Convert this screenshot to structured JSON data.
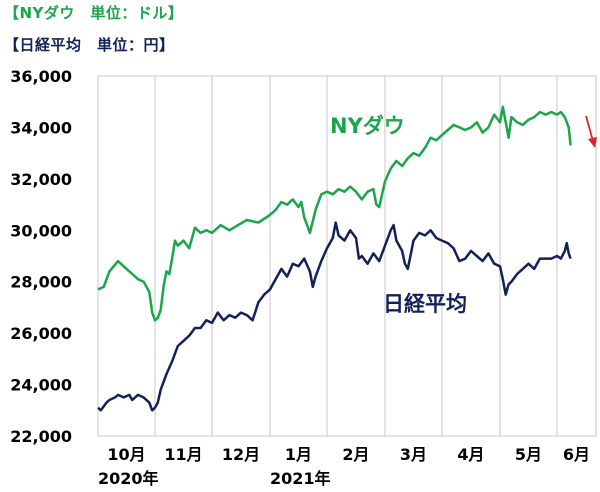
{
  "headers": {
    "nydow": "【NYダウ　単位：ドル】",
    "nikkei": "【日経平均　単位：円】"
  },
  "colors": {
    "nydow": "#1aa64a",
    "nikkei": "#13215b",
    "arrow": "#d9262b",
    "grid": "#c8c8c8"
  },
  "chart_data": {
    "type": "line",
    "title": "",
    "xlabel": "",
    "ylabel": "",
    "ylim": [
      22000,
      36000
    ],
    "yticks": [
      "22,000",
      "24,000",
      "26,000",
      "28,000",
      "30,000",
      "32,000",
      "34,000",
      "36,000"
    ],
    "xticks": [
      "10月",
      "11月",
      "12月",
      "1月",
      "2月",
      "3月",
      "4月",
      "5月",
      "6月"
    ],
    "year_labels": [
      "2020年",
      "2021年"
    ],
    "grid": "vertical",
    "series": [
      {
        "name": "NYダウ",
        "color": "#1aa64a",
        "points": [
          [
            0.0,
            27700
          ],
          [
            0.1,
            27800
          ],
          [
            0.2,
            28400
          ],
          [
            0.35,
            28800
          ],
          [
            0.5,
            28500
          ],
          [
            0.6,
            28300
          ],
          [
            0.7,
            28100
          ],
          [
            0.8,
            28000
          ],
          [
            0.9,
            27600
          ],
          [
            0.95,
            26800
          ],
          [
            1.0,
            26500
          ],
          [
            1.05,
            26600
          ],
          [
            1.1,
            26900
          ],
          [
            1.15,
            27800
          ],
          [
            1.2,
            28400
          ],
          [
            1.25,
            28300
          ],
          [
            1.3,
            28900
          ],
          [
            1.35,
            29600
          ],
          [
            1.4,
            29400
          ],
          [
            1.5,
            29600
          ],
          [
            1.6,
            29300
          ],
          [
            1.7,
            30100
          ],
          [
            1.8,
            29900
          ],
          [
            1.9,
            30000
          ],
          [
            2.0,
            29900
          ],
          [
            2.15,
            30200
          ],
          [
            2.3,
            30000
          ],
          [
            2.45,
            30200
          ],
          [
            2.6,
            30400
          ],
          [
            2.8,
            30300
          ],
          [
            3.0,
            30600
          ],
          [
            3.1,
            30800
          ],
          [
            3.2,
            31100
          ],
          [
            3.3,
            31000
          ],
          [
            3.4,
            31200
          ],
          [
            3.5,
            30900
          ],
          [
            3.55,
            31100
          ],
          [
            3.6,
            30500
          ],
          [
            3.65,
            30200
          ],
          [
            3.7,
            29900
          ],
          [
            3.8,
            30800
          ],
          [
            3.9,
            31400
          ],
          [
            4.0,
            31500
          ],
          [
            4.1,
            31400
          ],
          [
            4.2,
            31600
          ],
          [
            4.3,
            31500
          ],
          [
            4.4,
            31700
          ],
          [
            4.5,
            31500
          ],
          [
            4.6,
            31200
          ],
          [
            4.7,
            31500
          ],
          [
            4.8,
            31600
          ],
          [
            4.85,
            31000
          ],
          [
            4.9,
            30900
          ],
          [
            5.0,
            31900
          ],
          [
            5.1,
            32400
          ],
          [
            5.2,
            32700
          ],
          [
            5.3,
            32500
          ],
          [
            5.4,
            32800
          ],
          [
            5.5,
            33000
          ],
          [
            5.6,
            32900
          ],
          [
            5.7,
            33200
          ],
          [
            5.8,
            33600
          ],
          [
            5.9,
            33500
          ],
          [
            6.0,
            33700
          ],
          [
            6.1,
            33900
          ],
          [
            6.2,
            34100
          ],
          [
            6.3,
            34000
          ],
          [
            6.4,
            33900
          ],
          [
            6.5,
            34000
          ],
          [
            6.6,
            34200
          ],
          [
            6.7,
            33800
          ],
          [
            6.8,
            34000
          ],
          [
            6.9,
            34500
          ],
          [
            7.0,
            34200
          ],
          [
            7.05,
            34800
          ],
          [
            7.1,
            34200
          ],
          [
            7.15,
            33600
          ],
          [
            7.2,
            34400
          ],
          [
            7.3,
            34200
          ],
          [
            7.4,
            34100
          ],
          [
            7.5,
            34300
          ],
          [
            7.6,
            34400
          ],
          [
            7.7,
            34600
          ],
          [
            7.8,
            34500
          ],
          [
            7.9,
            34600
          ],
          [
            8.0,
            34500
          ],
          [
            8.1,
            34600
          ],
          [
            8.2,
            34400
          ],
          [
            8.25,
            34200
          ],
          [
            8.3,
            34000
          ],
          [
            8.35,
            33300
          ]
        ]
      },
      {
        "name": "日経平均",
        "color": "#13215b",
        "points": [
          [
            0.0,
            23100
          ],
          [
            0.05,
            23000
          ],
          [
            0.15,
            23300
          ],
          [
            0.2,
            23400
          ],
          [
            0.3,
            23500
          ],
          [
            0.35,
            23600
          ],
          [
            0.45,
            23500
          ],
          [
            0.55,
            23600
          ],
          [
            0.6,
            23400
          ],
          [
            0.7,
            23600
          ],
          [
            0.8,
            23500
          ],
          [
            0.9,
            23300
          ],
          [
            0.95,
            23000
          ],
          [
            1.0,
            23100
          ],
          [
            1.05,
            23300
          ],
          [
            1.1,
            23800
          ],
          [
            1.2,
            24400
          ],
          [
            1.3,
            24900
          ],
          [
            1.4,
            25500
          ],
          [
            1.5,
            25700
          ],
          [
            1.6,
            25900
          ],
          [
            1.7,
            26200
          ],
          [
            1.8,
            26200
          ],
          [
            1.9,
            26500
          ],
          [
            2.0,
            26400
          ],
          [
            2.1,
            26800
          ],
          [
            2.2,
            26500
          ],
          [
            2.3,
            26700
          ],
          [
            2.4,
            26600
          ],
          [
            2.5,
            26800
          ],
          [
            2.6,
            26700
          ],
          [
            2.7,
            26500
          ],
          [
            2.8,
            27200
          ],
          [
            2.9,
            27500
          ],
          [
            3.0,
            27700
          ],
          [
            3.1,
            28100
          ],
          [
            3.2,
            28500
          ],
          [
            3.3,
            28200
          ],
          [
            3.4,
            28700
          ],
          [
            3.5,
            28600
          ],
          [
            3.6,
            28900
          ],
          [
            3.7,
            28400
          ],
          [
            3.75,
            27800
          ],
          [
            3.8,
            28200
          ],
          [
            3.9,
            28800
          ],
          [
            4.0,
            29300
          ],
          [
            4.1,
            29700
          ],
          [
            4.15,
            30300
          ],
          [
            4.2,
            29800
          ],
          [
            4.3,
            29600
          ],
          [
            4.4,
            30000
          ],
          [
            4.5,
            29700
          ],
          [
            4.55,
            28900
          ],
          [
            4.6,
            29000
          ],
          [
            4.7,
            28700
          ],
          [
            4.8,
            29100
          ],
          [
            4.9,
            28800
          ],
          [
            5.0,
            29400
          ],
          [
            5.1,
            30000
          ],
          [
            5.15,
            30200
          ],
          [
            5.2,
            29600
          ],
          [
            5.3,
            29200
          ],
          [
            5.35,
            28700
          ],
          [
            5.4,
            28500
          ],
          [
            5.5,
            29600
          ],
          [
            5.6,
            29900
          ],
          [
            5.7,
            29800
          ],
          [
            5.8,
            30000
          ],
          [
            5.9,
            29700
          ],
          [
            6.0,
            29600
          ],
          [
            6.1,
            29500
          ],
          [
            6.2,
            29300
          ],
          [
            6.3,
            28800
          ],
          [
            6.4,
            28900
          ],
          [
            6.5,
            29200
          ],
          [
            6.6,
            29000
          ],
          [
            6.7,
            28800
          ],
          [
            6.8,
            29100
          ],
          [
            6.9,
            28700
          ],
          [
            7.0,
            28600
          ],
          [
            7.05,
            28100
          ],
          [
            7.1,
            27500
          ],
          [
            7.15,
            27900
          ],
          [
            7.2,
            28000
          ],
          [
            7.3,
            28300
          ],
          [
            7.4,
            28500
          ],
          [
            7.5,
            28700
          ],
          [
            7.6,
            28500
          ],
          [
            7.7,
            28900
          ],
          [
            7.8,
            28900
          ],
          [
            7.9,
            28900
          ],
          [
            8.0,
            29000
          ],
          [
            8.1,
            28900
          ],
          [
            8.2,
            29200
          ],
          [
            8.25,
            29500
          ],
          [
            8.3,
            29100
          ],
          [
            8.35,
            28900
          ]
        ]
      }
    ]
  }
}
